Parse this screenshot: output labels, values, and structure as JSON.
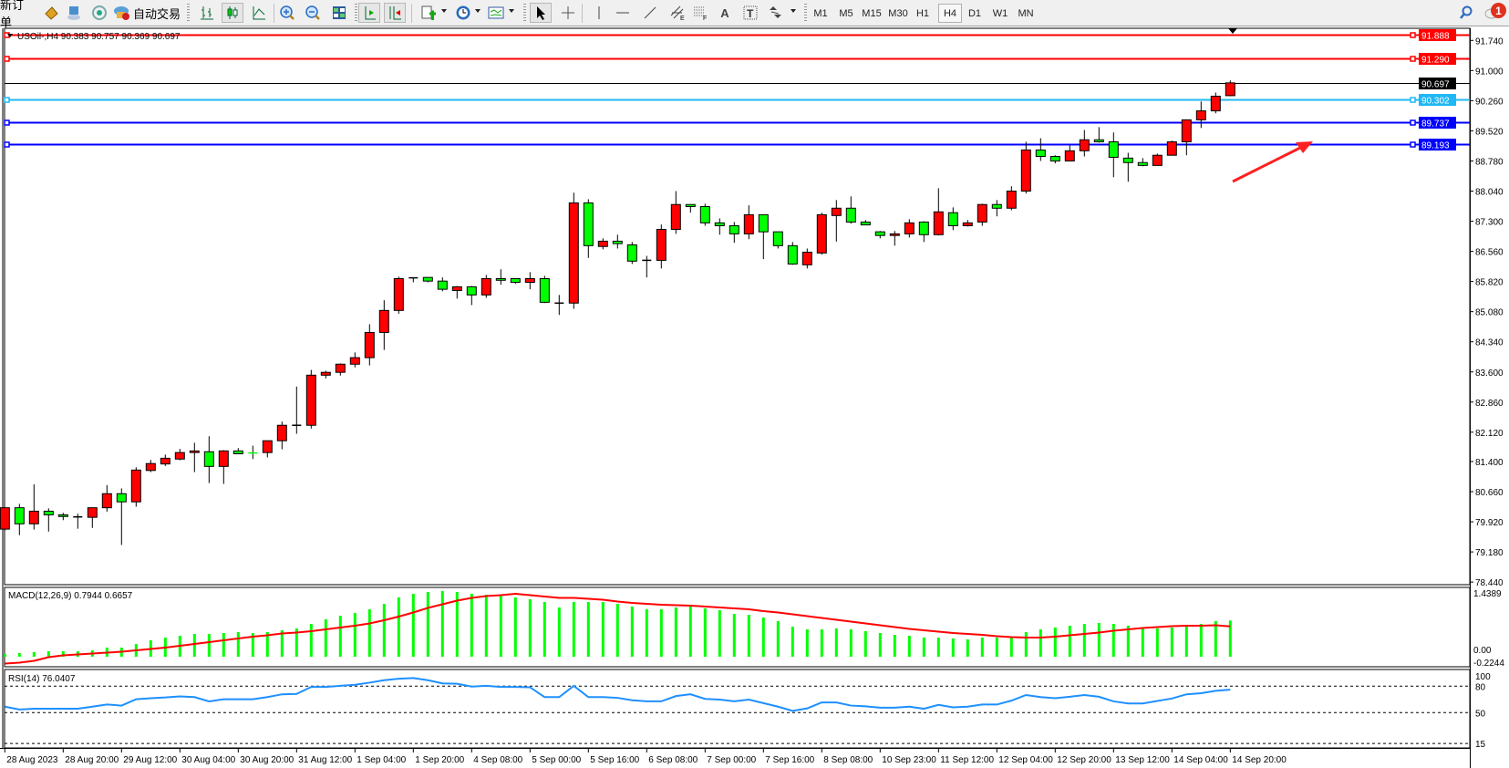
{
  "toolbar": {
    "new_order_label": "新订单",
    "auto_trading_label": "自动交易",
    "timeframes": [
      "M1",
      "M5",
      "M15",
      "M30",
      "H1",
      "H4",
      "D1",
      "W1",
      "MN"
    ],
    "active_timeframe": "H4",
    "notification_count": "1",
    "icons": [
      "market-watch-icon",
      "data-window-icon",
      "signals-icon",
      "auto-trading-icon",
      "bar-chart-icon",
      "candlestick-icon",
      "line-chart-icon",
      "zoom-in-icon",
      "zoom-out-icon",
      "tile-windows-icon",
      "auto-scroll-icon",
      "chart-shift-icon",
      "indicators-icon",
      "periods-icon",
      "templates-icon",
      "cursor-icon",
      "crosshair-icon",
      "vertical-line-icon",
      "horizontal-line-icon",
      "trendline-icon",
      "equidistant-channel-icon",
      "fibonacci-icon",
      "text-icon",
      "text-label-icon",
      "shapes-icon",
      "search-icon",
      "notification-icon"
    ]
  },
  "chart": {
    "header": "USOil-,H4  90.383 90.757 90.369 90.697",
    "colors": {
      "bull": "#ff0000",
      "bear": "#00ff00",
      "macd_hist": "#00ff00",
      "macd_signal": "#ff0000",
      "rsi": "#1e90ff"
    }
  },
  "chart_data": [
    {
      "type": "candlestick",
      "symbol": "USOil-",
      "timeframe": "H4",
      "ylim": [
        78.44,
        91.94
      ],
      "grid": false,
      "price_ticks": [
        "91.740",
        "91.000",
        "90.260",
        "89.520",
        "88.780",
        "88.040",
        "87.300",
        "86.560",
        "85.820",
        "85.080",
        "84.340",
        "83.600",
        "82.860",
        "82.120",
        "81.400",
        "80.660",
        "79.920",
        "79.180",
        "78.440"
      ],
      "time_labels": [
        "28 Aug 2023",
        "28 Aug 20:00",
        "29 Aug 12:00",
        "30 Aug 04:00",
        "30 Aug 20:00",
        "31 Aug 12:00",
        "1 Sep 04:00",
        "1 Sep 20:00",
        "4 Sep 08:00",
        "5 Sep 00:00",
        "5 Sep 16:00",
        "6 Sep 08:00",
        "7 Sep 00:00",
        "7 Sep 16:00",
        "8 Sep 08:00",
        "10 Sep 23:00",
        "11 Sep 12:00",
        "12 Sep 04:00",
        "12 Sep 20:00",
        "13 Sep 12:00",
        "14 Sep 04:00",
        "14 Sep 20:00"
      ],
      "ohlc_fields": [
        "open",
        "high",
        "low",
        "close"
      ],
      "candles": [
        [
          79.74,
          80.27,
          79.7,
          80.265
        ],
        [
          80.265,
          80.36,
          79.59,
          79.87
        ],
        [
          79.87,
          80.84,
          79.73,
          80.18
        ],
        [
          80.18,
          80.25,
          79.68,
          80.09
        ],
        [
          80.09,
          80.14,
          79.96,
          80.05
        ],
        [
          80.04,
          80.12,
          79.75,
          80.04
        ],
        [
          80.03,
          80.27,
          79.77,
          80.265
        ],
        [
          80.265,
          80.82,
          80.17,
          80.61
        ],
        [
          80.61,
          80.74,
          79.35,
          80.41
        ],
        [
          80.41,
          81.26,
          80.29,
          81.19
        ],
        [
          81.18,
          81.44,
          81.14,
          81.35
        ],
        [
          81.34,
          81.57,
          81.29,
          81.48
        ],
        [
          81.46,
          81.71,
          81.43,
          81.62
        ],
        [
          81.62,
          81.86,
          81.14,
          81.66
        ],
        [
          81.64,
          82.02,
          80.87,
          81.28
        ],
        [
          81.28,
          81.68,
          80.85,
          81.66
        ],
        [
          81.66,
          81.73,
          81.59,
          81.59
        ],
        [
          81.61,
          81.79,
          81.46,
          81.6
        ],
        [
          81.62,
          81.91,
          81.5,
          81.91
        ],
        [
          81.91,
          82.38,
          81.7,
          82.29
        ],
        [
          82.29,
          83.24,
          82.08,
          82.29
        ],
        [
          82.29,
          83.65,
          82.21,
          83.52
        ],
        [
          83.52,
          83.63,
          83.44,
          83.59
        ],
        [
          83.59,
          83.81,
          83.51,
          83.79
        ],
        [
          83.79,
          84.08,
          83.71,
          83.95
        ],
        [
          83.95,
          84.77,
          83.76,
          84.57
        ],
        [
          84.57,
          85.36,
          84.14,
          85.11
        ],
        [
          85.11,
          85.94,
          85.03,
          85.89
        ],
        [
          85.91,
          85.91,
          85.8,
          85.91
        ],
        [
          85.92,
          85.92,
          85.8,
          85.83
        ],
        [
          85.83,
          85.92,
          85.58,
          85.63
        ],
        [
          85.6,
          85.71,
          85.4,
          85.69
        ],
        [
          85.69,
          85.71,
          85.24,
          85.49
        ],
        [
          85.49,
          85.98,
          85.42,
          85.89
        ],
        [
          85.89,
          86.12,
          85.74,
          85.85
        ],
        [
          85.89,
          85.89,
          85.76,
          85.8
        ],
        [
          85.8,
          86.05,
          85.63,
          85.89
        ],
        [
          85.89,
          85.96,
          85.29,
          85.31
        ],
        [
          85.29,
          85.49,
          85.0,
          85.29
        ],
        [
          85.29,
          88.0,
          85.15,
          87.75
        ],
        [
          87.75,
          87.84,
          86.4,
          86.7
        ],
        [
          86.68,
          86.88,
          86.61,
          86.81
        ],
        [
          86.81,
          86.97,
          86.63,
          86.75
        ],
        [
          86.72,
          86.79,
          86.25,
          86.32
        ],
        [
          86.34,
          86.45,
          85.92,
          86.34
        ],
        [
          86.34,
          87.22,
          86.14,
          87.1
        ],
        [
          87.1,
          88.04,
          86.99,
          87.71
        ],
        [
          87.71,
          87.71,
          87.51,
          87.66
        ],
        [
          87.66,
          87.73,
          87.19,
          87.26
        ],
        [
          87.26,
          87.37,
          86.97,
          87.19
        ],
        [
          87.19,
          87.28,
          86.77,
          86.99
        ],
        [
          86.99,
          87.69,
          86.86,
          87.46
        ],
        [
          87.46,
          87.46,
          86.37,
          87.04
        ],
        [
          87.04,
          87.04,
          86.63,
          86.7
        ],
        [
          86.7,
          86.79,
          86.23,
          86.25
        ],
        [
          86.23,
          86.63,
          86.14,
          86.54
        ],
        [
          86.52,
          87.51,
          86.48,
          87.46
        ],
        [
          87.44,
          87.82,
          86.8,
          87.62
        ],
        [
          87.62,
          87.91,
          87.24,
          87.28
        ],
        [
          87.28,
          87.33,
          87.21,
          87.21
        ],
        [
          87.04,
          87.06,
          86.88,
          86.95
        ],
        [
          86.95,
          87.06,
          86.7,
          86.99
        ],
        [
          86.99,
          87.35,
          86.9,
          87.26
        ],
        [
          87.28,
          87.3,
          86.79,
          86.97
        ],
        [
          86.97,
          88.11,
          86.95,
          87.53
        ],
        [
          87.51,
          87.64,
          87.08,
          87.19
        ],
        [
          87.19,
          87.33,
          87.17,
          87.26
        ],
        [
          87.28,
          87.73,
          87.19,
          87.71
        ],
        [
          87.71,
          87.82,
          87.42,
          87.62
        ],
        [
          87.62,
          88.16,
          87.57,
          88.04
        ],
        [
          88.04,
          89.25,
          87.98,
          89.05
        ],
        [
          89.05,
          89.34,
          88.78,
          88.89
        ],
        [
          88.89,
          88.92,
          88.72,
          88.78
        ],
        [
          88.78,
          89.16,
          88.78,
          89.03
        ],
        [
          89.03,
          89.54,
          88.89,
          89.3
        ],
        [
          89.3,
          89.61,
          89.23,
          89.25
        ],
        [
          89.25,
          89.48,
          88.38,
          88.87
        ],
        [
          88.85,
          88.98,
          88.27,
          88.74
        ],
        [
          88.74,
          88.85,
          88.65,
          88.67
        ],
        [
          88.67,
          88.96,
          88.67,
          88.92
        ],
        [
          88.92,
          89.28,
          88.92,
          89.25
        ],
        [
          89.25,
          89.79,
          88.92,
          89.79
        ],
        [
          89.79,
          90.24,
          89.59,
          90.01
        ],
        [
          90.01,
          90.46,
          89.95,
          90.37
        ],
        [
          90.383,
          90.757,
          90.369,
          90.697
        ]
      ],
      "horizontal_lines": [
        {
          "price": "91.888",
          "color": "#ff0000"
        },
        {
          "price": "91.290",
          "color": "#ff0000"
        },
        {
          "price": "90.697",
          "color": "#000000",
          "kind": "bid"
        },
        {
          "price": "90.302",
          "color": "#1fb8f5"
        },
        {
          "price": "89.737",
          "color": "#0000ff"
        },
        {
          "price": "89.193",
          "color": "#0000ff"
        }
      ],
      "annotations": [
        {
          "type": "arrow",
          "color": "#ff2020",
          "direction": "up-right"
        }
      ]
    },
    {
      "type": "bar+line",
      "label": "MACD(12,26,9) 0.7944 0.6657",
      "ylim": [
        -0.2244,
        1.4389
      ],
      "axis_labels": [
        "1.4389",
        "0.00",
        "-0.2244"
      ],
      "histogram": [
        0.06,
        0.08,
        0.1,
        0.12,
        0.12,
        0.12,
        0.14,
        0.2,
        0.2,
        0.28,
        0.36,
        0.42,
        0.46,
        0.5,
        0.5,
        0.52,
        0.54,
        0.52,
        0.54,
        0.58,
        0.62,
        0.72,
        0.82,
        0.9,
        0.96,
        1.04,
        1.16,
        1.3,
        1.38,
        1.42,
        1.44,
        1.42,
        1.38,
        1.36,
        1.34,
        1.3,
        1.26,
        1.2,
        1.08,
        1.2,
        1.2,
        1.2,
        1.16,
        1.1,
        1.04,
        1.04,
        1.08,
        1.1,
        1.06,
        1.02,
        0.94,
        0.92,
        0.86,
        0.78,
        0.66,
        0.6,
        0.6,
        0.62,
        0.6,
        0.56,
        0.52,
        0.48,
        0.46,
        0.42,
        0.42,
        0.4,
        0.38,
        0.42,
        0.42,
        0.42,
        0.54,
        0.6,
        0.64,
        0.68,
        0.72,
        0.74,
        0.72,
        0.68,
        0.64,
        0.62,
        0.64,
        0.66,
        0.72,
        0.78,
        0.7944
      ],
      "signal": [
        -0.15,
        -0.13,
        -0.09,
        -0.01,
        0.03,
        0.05,
        0.07,
        0.09,
        0.11,
        0.14,
        0.17,
        0.2,
        0.24,
        0.28,
        0.32,
        0.36,
        0.4,
        0.44,
        0.47,
        0.51,
        0.53,
        0.56,
        0.6,
        0.64,
        0.68,
        0.73,
        0.8,
        0.88,
        0.97,
        1.07,
        1.15,
        1.23,
        1.29,
        1.33,
        1.35,
        1.38,
        1.35,
        1.32,
        1.29,
        1.29,
        1.27,
        1.25,
        1.21,
        1.18,
        1.16,
        1.14,
        1.13,
        1.12,
        1.1,
        1.08,
        1.06,
        1.04,
        1.0,
        0.97,
        0.93,
        0.89,
        0.85,
        0.81,
        0.77,
        0.73,
        0.69,
        0.65,
        0.61,
        0.58,
        0.55,
        0.52,
        0.5,
        0.48,
        0.45,
        0.43,
        0.42,
        0.42,
        0.44,
        0.47,
        0.5,
        0.53,
        0.57,
        0.6,
        0.63,
        0.65,
        0.67,
        0.68,
        0.68,
        0.69,
        0.6657
      ]
    },
    {
      "type": "line",
      "label": "RSI(14) 76.0407",
      "ylim": [
        0,
        100
      ],
      "levels": [
        80,
        50,
        15
      ],
      "axis_labels": [
        "100",
        "80",
        "50",
        "15"
      ],
      "values": [
        56.8,
        53.6,
        54.4,
        54.4,
        54.4,
        54.4,
        56.8,
        59.2,
        58.0,
        65.2,
        66.4,
        67.2,
        68.4,
        67.6,
        62.8,
        65.2,
        65.2,
        65.2,
        67.6,
        70.8,
        71.2,
        79.2,
        79.2,
        80.4,
        81.6,
        84.0,
        86.8,
        88.4,
        89.2,
        86.8,
        83.2,
        82.8,
        79.6,
        80.4,
        79.2,
        79.2,
        78.8,
        67.6,
        67.6,
        80.4,
        67.6,
        67.6,
        66.8,
        64.0,
        62.8,
        62.8,
        68.8,
        70.8,
        65.6,
        64.8,
        62.8,
        64.8,
        60.8,
        56.8,
        52.0,
        54.8,
        61.6,
        61.6,
        58.0,
        57.2,
        55.6,
        55.6,
        56.8,
        54.4,
        58.8,
        56.0,
        56.8,
        59.2,
        59.2,
        63.6,
        70.0,
        67.6,
        66.4,
        68.0,
        70.0,
        68.0,
        62.8,
        60.4,
        60.4,
        63.2,
        66.0,
        70.8,
        72.0,
        74.8,
        76.0407
      ]
    }
  ]
}
